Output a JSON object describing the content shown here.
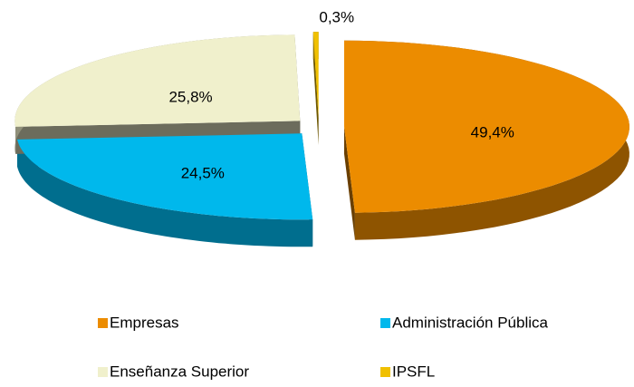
{
  "chart_data": {
    "type": "pie",
    "categories": [
      "Empresas",
      "Administración Pública",
      "Enseñanza Superior",
      "IPSFL"
    ],
    "values": [
      49.4,
      24.5,
      25.8,
      0.3
    ],
    "value_labels": [
      "49,4%",
      "24,5%",
      "25,8%",
      "0,3%"
    ],
    "colors": [
      "#ec8c00",
      "#00b8ec",
      "#f0f0cc",
      "#f0c000"
    ],
    "legend": "bottom"
  }
}
